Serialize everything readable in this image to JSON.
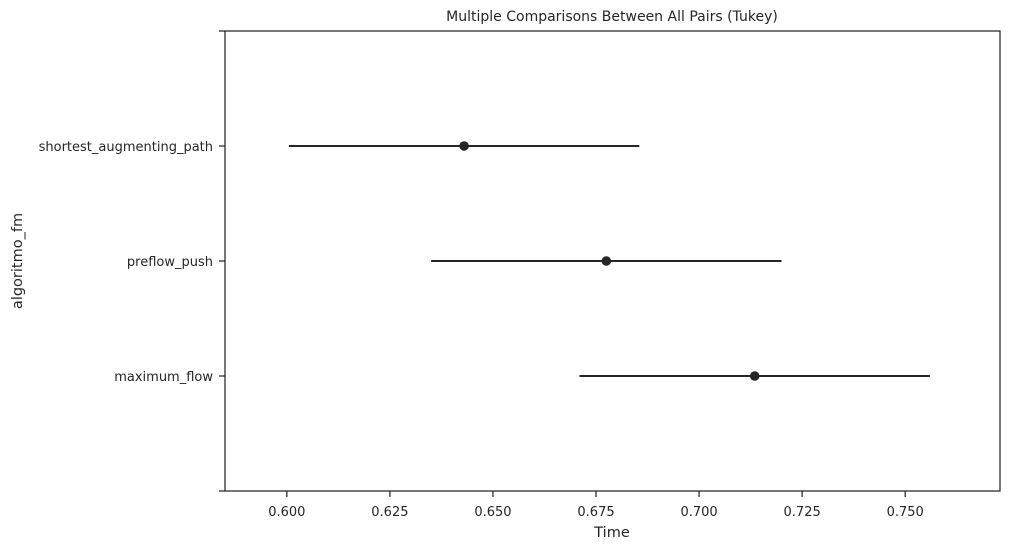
{
  "chart_data": {
    "type": "scatter",
    "title": "Multiple Comparisons Between All Pairs (Tukey)",
    "xlabel": "Time",
    "ylabel": "algoritmo_fm",
    "xlim": [
      0.585,
      0.773
    ],
    "xticks": [
      "0.600",
      "0.625",
      "0.650",
      "0.675",
      "0.700",
      "0.725",
      "0.750"
    ],
    "categories": [
      "shortest_augmenting_path",
      "preflow_push",
      "maximum_flow"
    ],
    "means": [
      0.643,
      0.6775,
      0.7135
    ],
    "lower": [
      0.6005,
      0.635,
      0.671
    ],
    "upper": [
      0.6855,
      0.72,
      0.756
    ],
    "grid": false,
    "legend": "none",
    "color": "#262626"
  }
}
